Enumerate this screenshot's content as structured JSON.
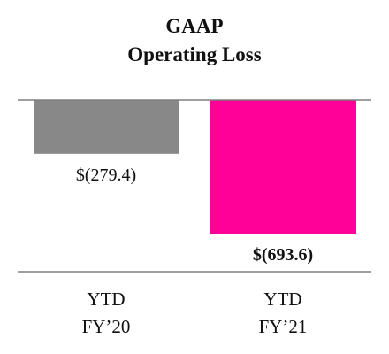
{
  "chart_data": {
    "type": "bar",
    "title": "GAAP",
    "subtitle": "Operating Loss",
    "categories": [
      [
        "YTD",
        "FY’20"
      ],
      [
        "YTD",
        "FY’21"
      ]
    ],
    "values": [
      -279.4,
      -693.6
    ],
    "data_labels": [
      "$(279.4)",
      "$(693.6)"
    ],
    "data_label_bold": [
      false,
      true
    ],
    "colors": [
      "#888888",
      "#ff0099"
    ],
    "ylim": [
      -750,
      0
    ],
    "xlabel": "",
    "ylabel": "",
    "grid": false,
    "legend": "none"
  }
}
